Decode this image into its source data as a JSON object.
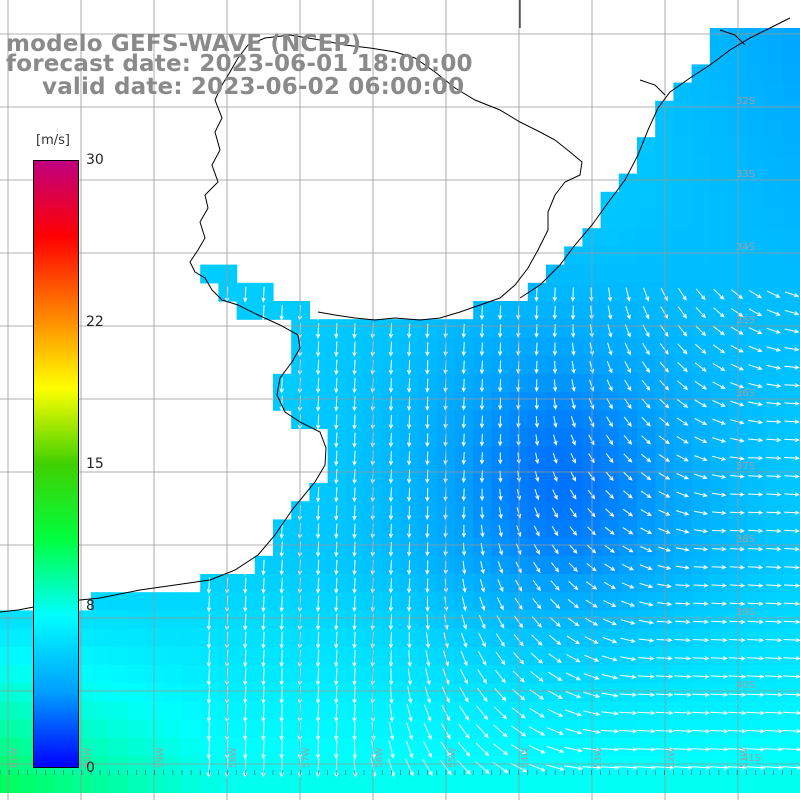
{
  "title": {
    "line1": "modelo GEFS-WAVE (NCEP)",
    "line2": "forecast date: 2023-06-01 18:00:00",
    "line3": "valid date: 2023-06-02 06:00:00"
  },
  "colorbar": {
    "unit": "[m/s]",
    "ticks": [
      "30",
      "22",
      "15",
      "8",
      "0"
    ],
    "tick_values": [
      30,
      22,
      15,
      8,
      0
    ],
    "range": [
      0,
      30
    ],
    "colors": [
      "#0000ff",
      "#00a0ff",
      "#00ffff",
      "#00ff40",
      "#40d000",
      "#ffff00",
      "#ff8000",
      "#ff0000",
      "#c00080"
    ]
  },
  "lat_labels": [
    "32S",
    "33S",
    "34S",
    "35S",
    "36S",
    "37S",
    "38S",
    "39S",
    "40S",
    "41S"
  ],
  "lon_labels": [
    "61W",
    "60W",
    "59W",
    "58W",
    "57W",
    "56W",
    "55W",
    "54W",
    "53W",
    "52W",
    "51W"
  ],
  "map": {
    "land_color": "#ffffff",
    "grid_color": "#999999",
    "coast_color": "#000000",
    "arrow_color": "#ffffff"
  }
}
